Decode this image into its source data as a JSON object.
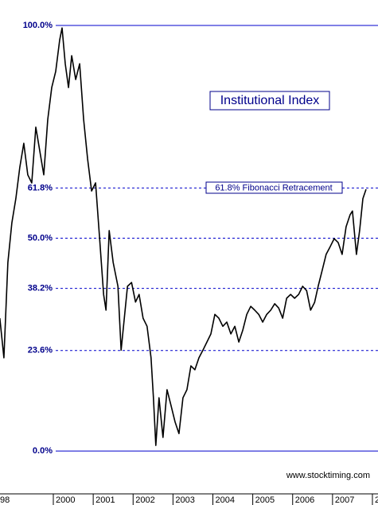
{
  "chart_data": {
    "type": "line",
    "title": "Institutional Index",
    "annotations": [
      "61.8% Fibonacci Retracement",
      "www.stocktiming.com"
    ],
    "xlim": [
      1998.663,
      2008.14
    ],
    "ylim": [
      -10,
      101
    ],
    "xticks": [
      {
        "value": 1998,
        "label": "98"
      },
      2000,
      2001,
      2002,
      2003,
      2004,
      2005,
      2006,
      2007,
      {
        "value": 2008,
        "label": "2"
      }
    ],
    "yticks": [
      {
        "value": 0,
        "label": "0.0%"
      },
      {
        "value": 23.6,
        "label": "23.6%"
      },
      {
        "value": 38.2,
        "label": "38.2%"
      },
      {
        "value": 50,
        "label": "50.0%"
      },
      {
        "value": 61.8,
        "label": "61.8%"
      },
      {
        "value": 100,
        "label": "100.0%"
      }
    ],
    "grid": true,
    "color": "#000000",
    "x": [
      1998.66,
      1998.76,
      1998.86,
      1998.96,
      1999.06,
      1999.16,
      1999.26,
      1999.36,
      1999.46,
      1999.56,
      1999.66,
      1999.76,
      1999.86,
      1999.96,
      2000.06,
      2000.16,
      2000.22,
      2000.3,
      2000.38,
      2000.46,
      2000.56,
      2000.66,
      2000.76,
      2000.86,
      2000.96,
      2001.06,
      2001.16,
      2001.26,
      2001.32,
      2001.4,
      2001.5,
      2001.62,
      2001.7,
      2001.76,
      2001.86,
      2001.96,
      2002.06,
      2002.15,
      2002.25,
      2002.35,
      2002.45,
      2002.51,
      2002.57,
      2002.65,
      2002.75,
      2002.85,
      2002.95,
      2003.05,
      2003.15,
      2003.25,
      2003.35,
      2003.45,
      2003.55,
      2003.65,
      2003.75,
      2003.85,
      2003.95,
      2004.05,
      2004.15,
      2004.25,
      2004.35,
      2004.45,
      2004.55,
      2004.65,
      2004.75,
      2004.85,
      2004.95,
      2005.05,
      2005.15,
      2005.25,
      2005.35,
      2005.45,
      2005.55,
      2005.65,
      2005.75,
      2005.85,
      2005.95,
      2006.05,
      2006.15,
      2006.25,
      2006.35,
      2006.45,
      2006.55,
      2006.64,
      2006.74,
      2006.84,
      2006.94,
      2007.04,
      2007.14,
      2007.24,
      2007.34,
      2007.44,
      2007.5,
      2007.6,
      2007.68,
      2007.76,
      2007.84
    ],
    "values": [
      31.2,
      21.9,
      44.3,
      53.6,
      59.3,
      66.7,
      72.3,
      64.9,
      63.0,
      76.1,
      70.5,
      64.9,
      77.9,
      85.4,
      89.2,
      96.6,
      99.4,
      91.0,
      85.4,
      92.9,
      87.3,
      91.0,
      77.9,
      68.6,
      61.1,
      63.0,
      49.9,
      36.8,
      33.1,
      51.8,
      44.3,
      38.7,
      23.7,
      29.3,
      38.7,
      39.6,
      35.0,
      36.8,
      31.2,
      29.3,
      21.9,
      12.5,
      1.3,
      12.5,
      3.2,
      14.4,
      10.7,
      6.9,
      4.1,
      12.5,
      14.4,
      20.0,
      19.1,
      21.9,
      23.7,
      25.6,
      27.5,
      32.1,
      31.2,
      29.3,
      30.3,
      27.5,
      29.3,
      25.6,
      28.4,
      32.1,
      34.0,
      33.1,
      32.1,
      30.3,
      32.1,
      33.1,
      34.6,
      33.6,
      31.2,
      35.9,
      36.8,
      35.9,
      36.8,
      38.7,
      37.7,
      33.1,
      34.9,
      38.7,
      42.4,
      46.2,
      48.0,
      49.9,
      49.0,
      46.2,
      52.7,
      55.5,
      56.4,
      46.2,
      51.8,
      59.3,
      61.5
    ]
  }
}
